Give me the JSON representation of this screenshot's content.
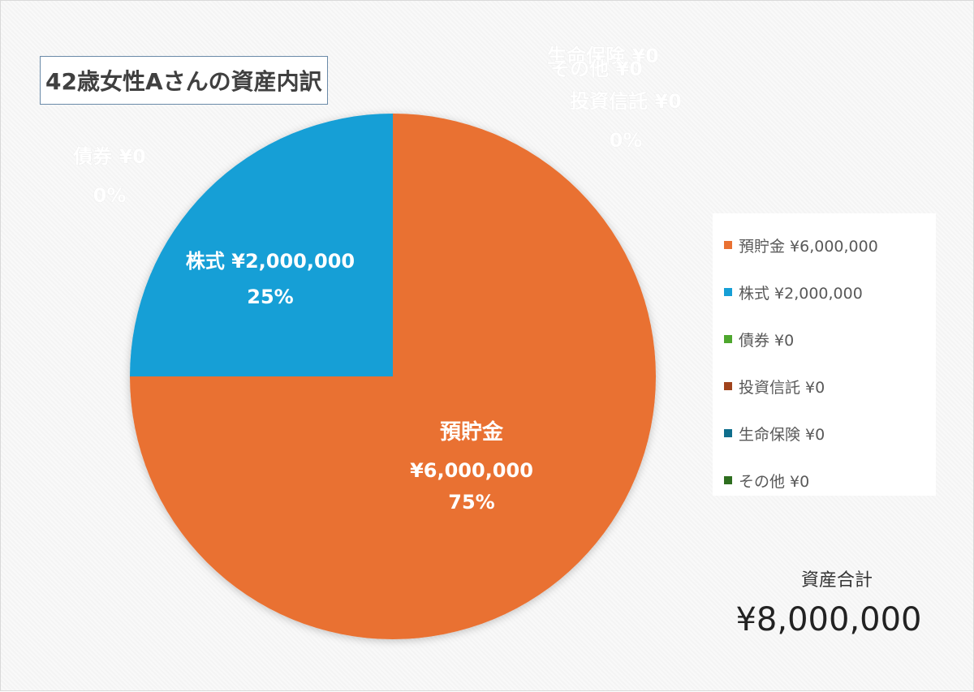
{
  "chart_data": {
    "type": "pie",
    "title": "42歳女性Aさんの資産内訳",
    "slices": [
      {
        "name": "預貯金",
        "value": 6000000,
        "value_label": "¥6,000,000",
        "percent": "75%",
        "legend": "預貯金 ¥6,000,000",
        "color": "#E97132"
      },
      {
        "name": "株式",
        "value": 2000000,
        "value_label": "¥2,000,000",
        "percent": "25%",
        "legend": "株式 ¥2,000,000",
        "color": "#169FD6"
      },
      {
        "name": "債券",
        "value": 0,
        "value_label": "¥0",
        "percent": "0%",
        "legend": "債券 ¥0",
        "color": "#4EA72E"
      },
      {
        "name": "投資信託",
        "value": 0,
        "value_label": "¥0",
        "percent": "0%",
        "legend": "投資信託 ¥0",
        "color": "#A0431C"
      },
      {
        "name": "生命保険",
        "value": 0,
        "value_label": "¥0",
        "percent": "0%",
        "legend": "生命保険 ¥0",
        "color": "#0F6E8C"
      },
      {
        "name": "その他",
        "value": 0,
        "value_label": "¥0",
        "percent": "0%",
        "legend": "その他 ¥0",
        "color": "#2E6E1F"
      }
    ],
    "legend_position": "right"
  },
  "summary": {
    "total_label": "資産合計",
    "total_value": "¥8,000,000"
  }
}
